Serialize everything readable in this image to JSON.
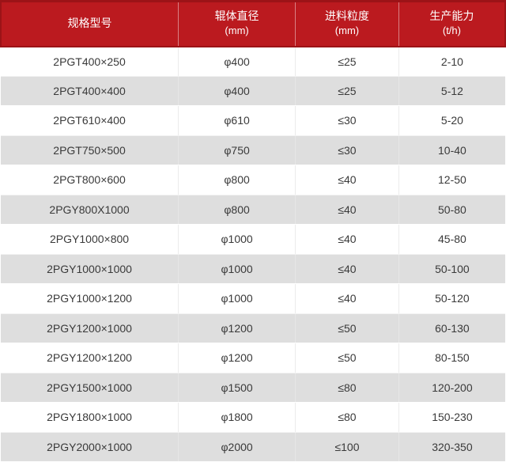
{
  "colors": {
    "header_bg": "#bb1a1f",
    "header_border": "#9c1317",
    "header_divider": "rgba(255,255,255,0.45)",
    "row_alt_bg": "#dedede",
    "row_bg": "#ffffff",
    "body_divider": "#ececec",
    "text": "#3a3a3a",
    "header_text": "#ffffff"
  },
  "chart_data": {
    "type": "table",
    "title": "",
    "legend": "none",
    "grid": "alternating-row-shading",
    "columns": [
      {
        "label": "规格型号",
        "unit": ""
      },
      {
        "label": "辊体直径",
        "unit": "(mm)"
      },
      {
        "label": "进料粒度",
        "unit": "(mm)"
      },
      {
        "label": "生产能力",
        "unit": "(t/h)"
      }
    ],
    "rows": [
      [
        "2PGT400×250",
        "φ400",
        "≤25",
        "2-10"
      ],
      [
        "2PGT400×400",
        "φ400",
        "≤25",
        "5-12"
      ],
      [
        "2PGT610×400",
        "φ610",
        "≤30",
        "5-20"
      ],
      [
        "2PGT750×500",
        "φ750",
        "≤30",
        "10-40"
      ],
      [
        "2PGT800×600",
        "φ800",
        "≤40",
        "12-50"
      ],
      [
        "2PGY800X1000",
        "φ800",
        "≤40",
        "50-80"
      ],
      [
        "2PGY1000×800",
        "φ1000",
        "≤40",
        "45-80"
      ],
      [
        "2PGY1000×1000",
        "φ1000",
        "≤40",
        "50-100"
      ],
      [
        "2PGY1000×1200",
        "φ1000",
        "≤40",
        "50-120"
      ],
      [
        "2PGY1200×1000",
        "φ1200",
        "≤50",
        "60-130"
      ],
      [
        "2PGY1200×1200",
        "φ1200",
        "≤50",
        "80-150"
      ],
      [
        "2PGY1500×1000",
        "φ1500",
        "≤80",
        "120-200"
      ],
      [
        "2PGY1800×1000",
        "φ1800",
        "≤80",
        "150-230"
      ],
      [
        "2PGY2000×1000",
        "φ2000",
        "≤100",
        "320-350"
      ]
    ]
  }
}
